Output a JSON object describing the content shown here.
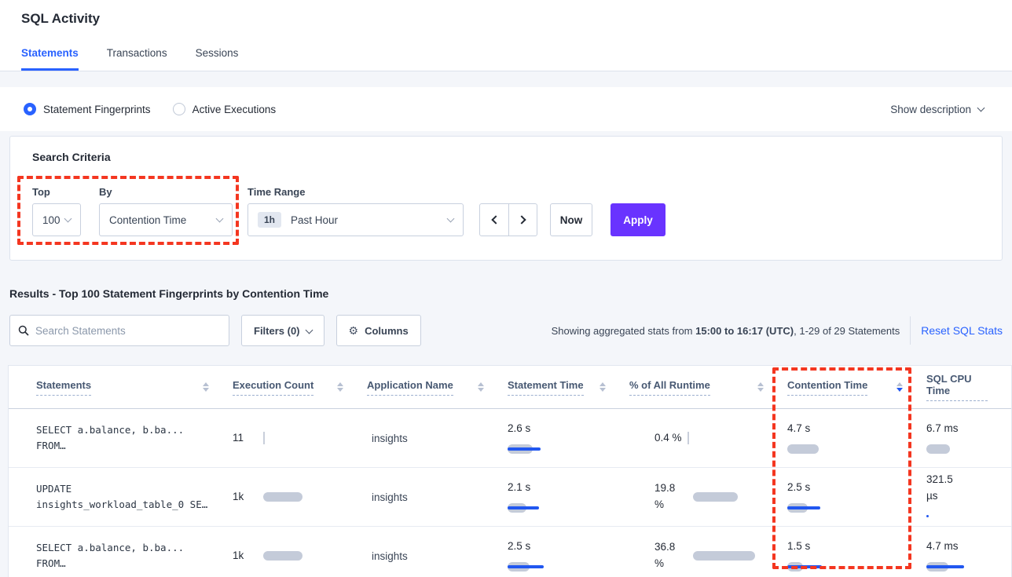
{
  "page": {
    "title": "SQL Activity"
  },
  "tabs": [
    {
      "label": "Statements"
    },
    {
      "label": "Transactions"
    },
    {
      "label": "Sessions"
    }
  ],
  "view_toggle": {
    "options": [
      {
        "label": "Statement Fingerprints"
      },
      {
        "label": "Active Executions"
      }
    ],
    "show_description": "Show description"
  },
  "search_criteria": {
    "heading": "Search Criteria",
    "top": {
      "label": "Top",
      "value": "100"
    },
    "by": {
      "label": "By",
      "value": "Contention Time"
    },
    "time_range": {
      "label": "Time Range",
      "badge": "1h",
      "value": "Past Hour"
    },
    "now_label": "Now",
    "apply_label": "Apply"
  },
  "results": {
    "heading": "Results - Top 100 Statement Fingerprints by Contention Time",
    "search_placeholder": "Search Statements",
    "filters_label": "Filters (0)",
    "columns_label": "Columns",
    "stats_prefix": "Showing aggregated stats from ",
    "stats_bold": "15:00 to 16:17 (UTC)",
    "stats_suffix": ", 1-29 of 29 Statements",
    "reset_label": "Reset SQL Stats"
  },
  "table": {
    "headers": [
      {
        "label": "Statements"
      },
      {
        "label": "Execution Count"
      },
      {
        "label": "Application Name"
      },
      {
        "label": "Statement Time"
      },
      {
        "label": "% of All Runtime"
      },
      {
        "label": "Contention Time",
        "sorted": "desc"
      },
      {
        "label": "SQL CPU Time"
      }
    ],
    "rows": [
      {
        "statement_line1": "SELECT a.balance, b.ba...",
        "statement_line2": "FROM…",
        "exec": {
          "value": "11",
          "bar": 0,
          "line": 0,
          "tick": 2
        },
        "app": "insights",
        "stmt_time": {
          "value": "2.6 s",
          "bar": 32,
          "line": 42
        },
        "runtime": {
          "value": "0.4 %",
          "bar": 0,
          "line": 0,
          "tick": 2
        },
        "contention": {
          "value": "4.7 s",
          "bar": 40,
          "line": 0,
          "tick": 0
        },
        "cpu": {
          "value": "6.7 ms",
          "bar": 30,
          "line": 0,
          "tick": 0
        }
      },
      {
        "statement_line1": "UPDATE",
        "statement_line2": "insights_workload_table_0 SE…",
        "exec": {
          "value": "1k",
          "bar": 50,
          "line": 0,
          "tick": 0
        },
        "app": "insights",
        "stmt_time": {
          "value": "2.1 s",
          "bar": 24,
          "line": 40
        },
        "runtime": {
          "value": "19.8 %",
          "bar": 57,
          "line": 0,
          "tick": 0
        },
        "contention": {
          "value": "2.5 s",
          "bar": 26,
          "line": 42,
          "tick": 0
        },
        "cpu": {
          "value": "321.5 µs",
          "bar": 0,
          "line": 3,
          "tick": 0
        }
      },
      {
        "statement_line1": "SELECT a.balance, b.ba...",
        "statement_line2": "FROM…",
        "exec": {
          "value": "1k",
          "bar": 50,
          "line": 0,
          "tick": 0
        },
        "app": "insights",
        "stmt_time": {
          "value": "2.5 s",
          "bar": 28,
          "line": 46
        },
        "runtime": {
          "value": "36.8 %",
          "bar": 79,
          "line": 0,
          "tick": 0
        },
        "contention": {
          "value": "1.5 s",
          "bar": 20,
          "line": 44,
          "tick": 0
        },
        "cpu": {
          "value": "4.7 ms",
          "bar": 28,
          "line": 48,
          "tick": 0
        }
      }
    ]
  },
  "colors": {
    "accent_blue": "#2962ff",
    "apply_purple": "#6933ff",
    "annotation_red": "#f43620",
    "bar_gray": "#c4cbd9",
    "bar_blue": "#2157f0",
    "page_background": "#f4f6fa"
  }
}
